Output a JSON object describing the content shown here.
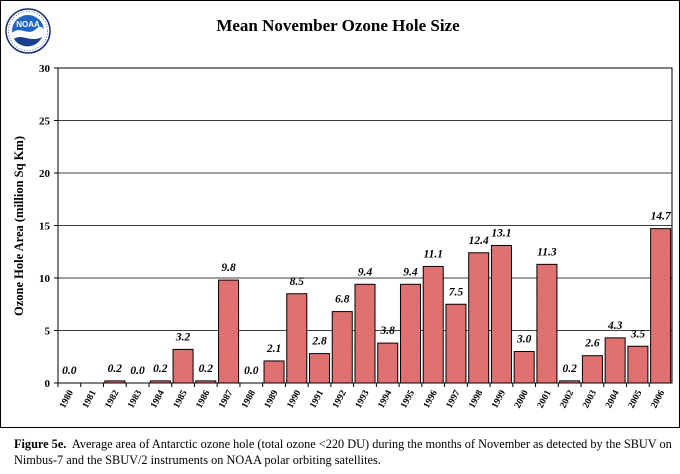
{
  "logo": {
    "text": "NOAA"
  },
  "caption": {
    "label": "Figure 5e.",
    "text": "Average area of Antarctic ozone hole (total ozone <220 DU) during the months of  November as detected by the SBUV on Nimbus-7 and the SBUV/2 instruments on NOAA polar orbiting satellites."
  },
  "chart_data": {
    "type": "bar",
    "title": "Mean November Ozone Hole Size",
    "xlabel": "",
    "ylabel": "Ozone Hole Area (million Sq Km)",
    "ylim": [
      0,
      30
    ],
    "yticks": [
      0,
      5,
      10,
      15,
      20,
      25,
      30
    ],
    "grid": true,
    "categories": [
      "1980",
      "1981",
      "1982",
      "1983",
      "1984",
      "1985",
      "1986",
      "1987",
      "1988",
      "1989",
      "1990",
      "1991",
      "1992",
      "1993",
      "1994",
      "1995",
      "1996",
      "1997",
      "1998",
      "1999",
      "2000",
      "2001",
      "2002",
      "2003",
      "2004",
      "2005",
      "2006"
    ],
    "values": [
      0.0,
      null,
      0.2,
      0.0,
      0.2,
      3.2,
      0.2,
      9.8,
      0.0,
      2.1,
      8.5,
      2.8,
      6.8,
      9.4,
      3.8,
      9.4,
      11.1,
      7.5,
      12.4,
      13.1,
      3.0,
      11.3,
      0.2,
      2.6,
      4.3,
      3.5,
      14.7
    ],
    "labels": [
      "0.0",
      "",
      "0.2",
      "0.0",
      "0.2",
      "3.2",
      "0.2",
      "9.8",
      "0.0",
      "2.1",
      "8.5",
      "2.8",
      "6.8",
      "9.4",
      "3.8",
      "9.4",
      "11.1",
      "7.5",
      "12.4",
      "13.1",
      "3.0",
      "11.3",
      "0.2",
      "2.6",
      "4.3",
      "3.5",
      "14.7"
    ],
    "bar_color": "#e87878"
  }
}
